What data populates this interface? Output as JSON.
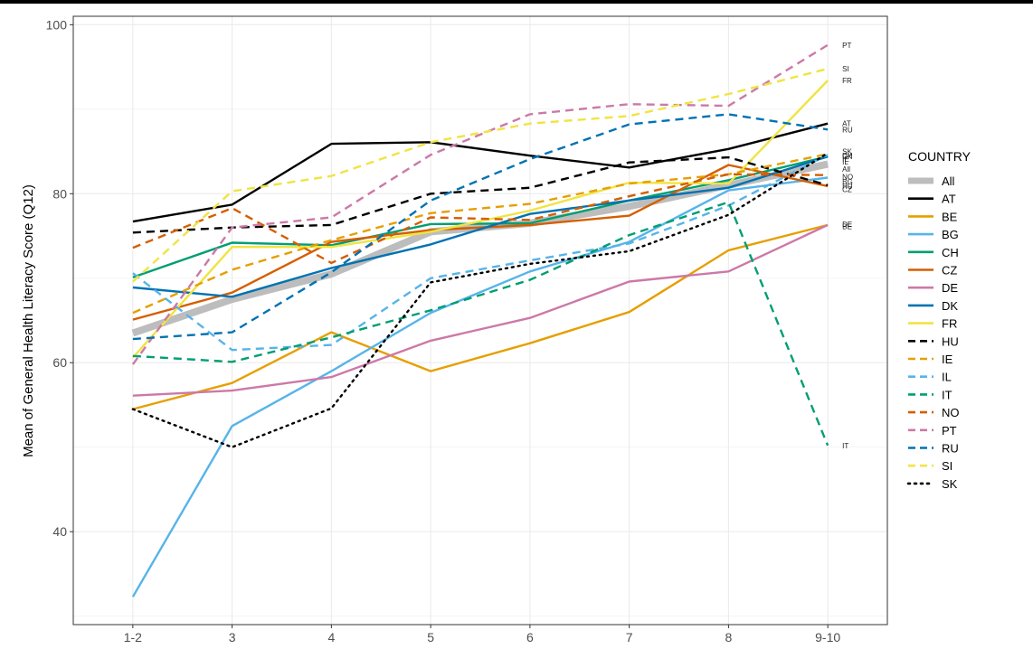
{
  "chart_data": {
    "type": "line",
    "title": "",
    "xlabel": "",
    "ylabel": "Mean of General Health Literacy Score (Q12)",
    "categories": [
      "1-2",
      "3",
      "4",
      "5",
      "6",
      "7",
      "8",
      "9-10"
    ],
    "ylim": [
      29,
      101
    ],
    "yticks": [
      40,
      60,
      80,
      100
    ],
    "grid": true,
    "legend_title": "COUNTRY",
    "legend_position": "right",
    "series": [
      {
        "name": "All",
        "color": "#bdbdbd",
        "dash": "solid",
        "width": "thick",
        "values": [
          63.5,
          67.5,
          70.5,
          75.5,
          76.5,
          78.5,
          81.0,
          83.5
        ]
      },
      {
        "name": "AT",
        "color": "#000000",
        "dash": "solid",
        "values": [
          76.7,
          78.7,
          85.9,
          86.1,
          84.5,
          83.1,
          85.3,
          88.3
        ]
      },
      {
        "name": "BE",
        "color": "#E69F00",
        "dash": "solid",
        "values": [
          54.5,
          57.6,
          63.6,
          59.0,
          62.3,
          66.0,
          73.3,
          76.3
        ]
      },
      {
        "name": "BG",
        "color": "#56B4E9",
        "dash": "solid",
        "values": [
          32.3,
          52.5,
          59.0,
          65.9,
          70.8,
          74.3,
          80.4,
          81.9
        ]
      },
      {
        "name": "CH",
        "color": "#009E73",
        "dash": "solid",
        "values": [
          70.1,
          74.2,
          73.9,
          76.4,
          76.5,
          79.2,
          81.6,
          84.4
        ]
      },
      {
        "name": "CZ",
        "color": "#D55E00",
        "dash": "solid",
        "values": [
          65.1,
          68.3,
          74.3,
          75.7,
          76.3,
          77.4,
          83.4,
          80.9
        ]
      },
      {
        "name": "DE",
        "color": "#CC79A7",
        "dash": "solid",
        "values": [
          56.1,
          56.7,
          58.3,
          62.6,
          65.3,
          69.6,
          70.8,
          76.3
        ]
      },
      {
        "name": "DK",
        "color": "#0072B2",
        "dash": "solid",
        "values": [
          68.9,
          67.8,
          71.2,
          74.0,
          77.6,
          79.2,
          80.7,
          84.4
        ]
      },
      {
        "name": "FR",
        "color": "#F0E442",
        "dash": "solid",
        "values": [
          60.6,
          73.7,
          73.7,
          75.5,
          78.0,
          81.3,
          81.2,
          93.4
        ]
      },
      {
        "name": "HU",
        "color": "#000000",
        "dash": "dashed",
        "values": [
          75.4,
          76.0,
          76.3,
          80.0,
          80.7,
          83.7,
          84.3,
          81.0
        ]
      },
      {
        "name": "IE",
        "color": "#E69F00",
        "dash": "dashed",
        "values": [
          65.9,
          71.0,
          74.5,
          77.7,
          78.8,
          81.2,
          82.3,
          84.7
        ]
      },
      {
        "name": "IL",
        "color": "#56B4E9",
        "dash": "dashed",
        "values": [
          70.6,
          61.5,
          62.1,
          70.0,
          72.1,
          74.1,
          78.6,
          84.6
        ]
      },
      {
        "name": "IT",
        "color": "#009E73",
        "dash": "dashed",
        "values": [
          60.8,
          60.1,
          63.0,
          66.2,
          69.8,
          75.1,
          79.0,
          50.2
        ]
      },
      {
        "name": "NO",
        "color": "#D55E00",
        "dash": "dashed",
        "values": [
          73.6,
          78.3,
          71.8,
          77.2,
          76.9,
          79.7,
          82.3,
          82.2
        ]
      },
      {
        "name": "PT",
        "color": "#CC79A7",
        "dash": "dashed",
        "values": [
          59.8,
          76.0,
          77.2,
          84.6,
          89.4,
          90.6,
          90.4,
          97.6
        ]
      },
      {
        "name": "RU",
        "color": "#0072B2",
        "dash": "dashed",
        "values": [
          62.8,
          63.6,
          70.7,
          79.2,
          84.1,
          88.2,
          89.4,
          87.6
        ]
      },
      {
        "name": "SI",
        "color": "#F0E442",
        "dash": "dashed",
        "values": [
          69.6,
          80.3,
          82.1,
          86.1,
          88.3,
          89.2,
          91.8,
          94.8
        ]
      },
      {
        "name": "SK",
        "color": "#000000",
        "dash": "dotted",
        "values": [
          54.5,
          50.0,
          54.6,
          69.5,
          71.7,
          73.2,
          77.5,
          84.8
        ]
      }
    ],
    "end_labels": [
      {
        "text": "PT",
        "y": 97.6
      },
      {
        "text": "SI",
        "y": 94.8
      },
      {
        "text": "FR",
        "y": 93.4
      },
      {
        "text": "AT",
        "y": 88.3
      },
      {
        "text": "RU",
        "y": 87.6
      },
      {
        "text": "SK",
        "y": 85.0
      },
      {
        "text": "CH",
        "y": 84.5
      },
      {
        "text": "DK",
        "y": 84.4
      },
      {
        "text": "IE",
        "y": 84.1
      },
      {
        "text": "IL",
        "y": 83.8
      },
      {
        "text": "All",
        "y": 82.9
      },
      {
        "text": "NO",
        "y": 82.0
      },
      {
        "text": "BG",
        "y": 81.4
      },
      {
        "text": "HU",
        "y": 80.9
      },
      {
        "text": "CZ",
        "y": 80.5
      },
      {
        "text": "DE",
        "y": 76.4
      },
      {
        "text": "BE",
        "y": 76.1
      },
      {
        "text": "IT",
        "y": 50.2
      }
    ]
  }
}
